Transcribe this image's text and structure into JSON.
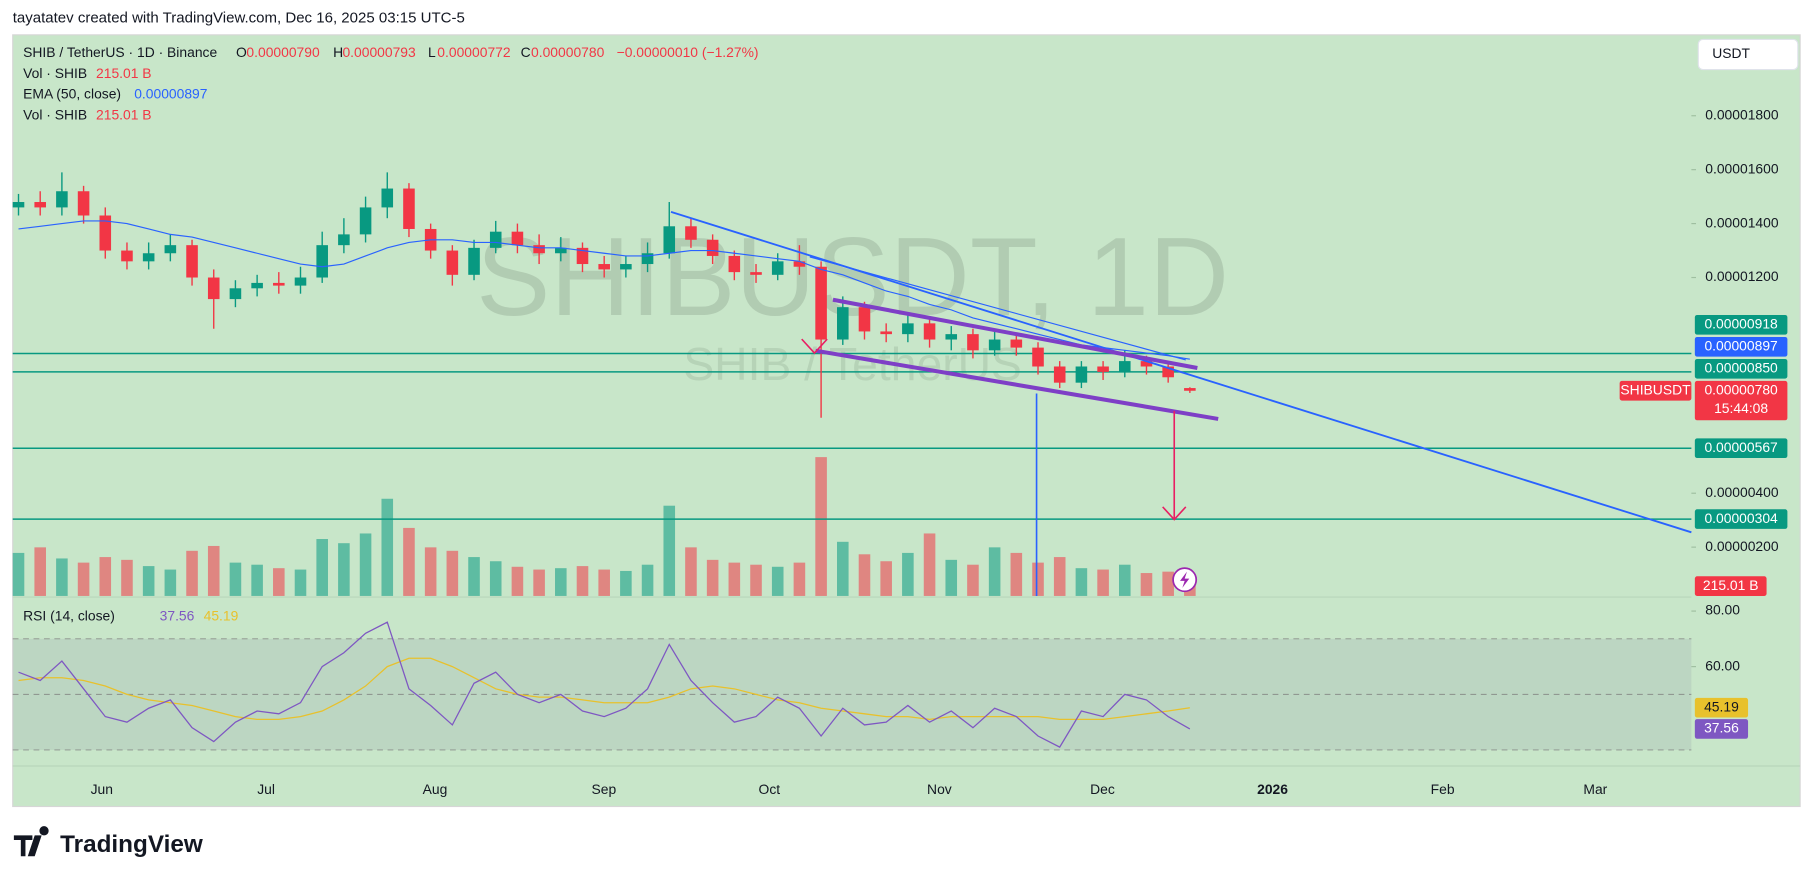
{
  "attribution": "tayatatev created with TradingView.com, Dec 16, 2025 03:15 UTC-5",
  "footer": {
    "logo": "TradingView"
  },
  "legend": {
    "symbol": "SHIB / TetherUS · 1D · Binance",
    "ohlc": [
      {
        "key": "O",
        "value": "0.00000790"
      },
      {
        "key": "H",
        "value": "0.00000793"
      },
      {
        "key": "L",
        "value": "0.00000772"
      },
      {
        "key": "C",
        "value": "0.00000780"
      }
    ],
    "change": "−0.00000010 (−1.27%)"
  },
  "chart_data": {
    "type": "candlestick",
    "watermark": "SHIBUSDT, 1D",
    "watermark_sub": "SHIB / TetherUS",
    "currency": "USDT",
    "time_labels": [
      "Jun",
      "Jul",
      "Aug",
      "Sep",
      "Oct",
      "Nov",
      "Dec",
      "2026",
      "Feb",
      "Mar"
    ],
    "ylim": [
      1.9e-07,
      2.1e-05
    ],
    "yticks": [
      {
        "value": 2e-06,
        "label": "0.00000200"
      },
      {
        "value": 4e-06,
        "label": "0.00000400"
      },
      {
        "value": 1.2e-05,
        "label": "0.00001200"
      },
      {
        "value": 1.4e-05,
        "label": "0.00001400"
      },
      {
        "value": 1.6e-05,
        "label": "0.00001600"
      },
      {
        "value": 1.8e-05,
        "label": "0.00001800"
      }
    ],
    "grid": false,
    "candles": {
      "name": "SHIBUSDT",
      "up_color": "#089981",
      "down_color": "#f23645",
      "open": [
        1.46e-05,
        1.48e-05,
        1.46e-05,
        1.52e-05,
        1.43e-05,
        1.3e-05,
        1.26e-05,
        1.29e-05,
        1.32e-05,
        1.2e-05,
        1.12e-05,
        1.16e-05,
        1.18e-05,
        1.17e-05,
        1.2e-05,
        1.32e-05,
        1.36e-05,
        1.46e-05,
        1.53e-05,
        1.38e-05,
        1.3e-05,
        1.21e-05,
        1.31e-05,
        1.37e-05,
        1.32e-05,
        1.29e-05,
        1.31e-05,
        1.25e-05,
        1.23e-05,
        1.25e-05,
        1.29e-05,
        1.39e-05,
        1.34e-05,
        1.28e-05,
        1.22e-05,
        1.21e-05,
        1.26e-05,
        1.24e-05,
        9.7e-06,
        1.09e-05,
        1e-05,
        9.9e-06,
        1.03e-05,
        9.7e-06,
        9.9e-06,
        9.3e-06,
        9.7e-06,
        9.4e-06,
        8.7e-06,
        8.1e-06,
        8.7e-06,
        8.5e-06,
        8.9e-06,
        8.7e-06,
        7.9e-06
      ],
      "high": [
        1.51e-05,
        1.52e-05,
        1.59e-05,
        1.54e-05,
        1.46e-05,
        1.33e-05,
        1.33e-05,
        1.36e-05,
        1.34e-05,
        1.23e-05,
        1.19e-05,
        1.21e-05,
        1.22e-05,
        1.24e-05,
        1.37e-05,
        1.42e-05,
        1.5e-05,
        1.59e-05,
        1.55e-05,
        1.4e-05,
        1.32e-05,
        1.34e-05,
        1.41e-05,
        1.4e-05,
        1.36e-05,
        1.35e-05,
        1.33e-05,
        1.28e-05,
        1.28e-05,
        1.33e-05,
        1.48e-05,
        1.42e-05,
        1.36e-05,
        1.3e-05,
        1.25e-05,
        1.29e-05,
        1.32e-05,
        1.26e-05,
        1.13e-05,
        1.11e-05,
        1.03e-05,
        1.06e-05,
        1.05e-05,
        1.02e-05,
        1.01e-05,
        1e-05,
        9.9e-06,
        9.6e-06,
        8.9e-06,
        8.9e-06,
        8.9e-06,
        9.3e-06,
        9.1e-06,
        8.9e-06,
        7.93e-06
      ],
      "low": [
        1.43e-05,
        1.43e-05,
        1.43e-05,
        1.4e-05,
        1.27e-05,
        1.23e-05,
        1.23e-05,
        1.26e-05,
        1.17e-05,
        1.01e-05,
        1.09e-05,
        1.13e-05,
        1.14e-05,
        1.14e-05,
        1.18e-05,
        1.29e-05,
        1.33e-05,
        1.42e-05,
        1.35e-05,
        1.27e-05,
        1.17e-05,
        1.19e-05,
        1.29e-05,
        1.29e-05,
        1.25e-05,
        1.26e-05,
        1.22e-05,
        1.2e-05,
        1.2e-05,
        1.22e-05,
        1.27e-05,
        1.31e-05,
        1.25e-05,
        1.19e-05,
        1.18e-05,
        1.19e-05,
        1.21e-05,
        6.8e-06,
        9.5e-06,
        9.7e-06,
        9.6e-06,
        9.6e-06,
        9.4e-06,
        9.3e-06,
        9e-06,
        9.1e-06,
        9.1e-06,
        8.4e-06,
        7.9e-06,
        7.9e-06,
        8.2e-06,
        8.3e-06,
        8.4e-06,
        8.1e-06,
        7.72e-06
      ],
      "close": [
        1.48e-05,
        1.46e-05,
        1.52e-05,
        1.43e-05,
        1.3e-05,
        1.26e-05,
        1.29e-05,
        1.32e-05,
        1.2e-05,
        1.12e-05,
        1.16e-05,
        1.18e-05,
        1.17e-05,
        1.2e-05,
        1.32e-05,
        1.36e-05,
        1.46e-05,
        1.53e-05,
        1.38e-05,
        1.3e-05,
        1.21e-05,
        1.31e-05,
        1.37e-05,
        1.32e-05,
        1.29e-05,
        1.31e-05,
        1.25e-05,
        1.23e-05,
        1.25e-05,
        1.29e-05,
        1.39e-05,
        1.34e-05,
        1.28e-05,
        1.22e-05,
        1.21e-05,
        1.26e-05,
        1.24e-05,
        9.7e-06,
        1.09e-05,
        1e-05,
        9.9e-06,
        1.03e-05,
        9.7e-06,
        9.9e-06,
        9.3e-06,
        9.7e-06,
        9.4e-06,
        8.7e-06,
        8.1e-06,
        8.7e-06,
        8.5e-06,
        8.9e-06,
        8.7e-06,
        8.3e-06,
        7.8e-06
      ],
      "last_label": "0.00000780",
      "countdown": "15:44:08"
    },
    "series": [
      {
        "name": "EMA (50, close)",
        "color": "#2962ff",
        "values": [
          1.38e-05,
          1.39e-05,
          1.4e-05,
          1.41e-05,
          1.41e-05,
          1.4e-05,
          1.38e-05,
          1.36e-05,
          1.35e-05,
          1.33e-05,
          1.31e-05,
          1.29e-05,
          1.27e-05,
          1.25e-05,
          1.24e-05,
          1.25e-05,
          1.28e-05,
          1.31e-05,
          1.33e-05,
          1.34e-05,
          1.34e-05,
          1.33e-05,
          1.33e-05,
          1.32e-05,
          1.31e-05,
          1.31e-05,
          1.3e-05,
          1.29e-05,
          1.28e-05,
          1.28e-05,
          1.29e-05,
          1.3e-05,
          1.3e-05,
          1.29e-05,
          1.28e-05,
          1.27e-05,
          1.26e-05,
          1.23e-05,
          1.21e-05,
          1.18e-05,
          1.15e-05,
          1.13e-05,
          1.1e-05,
          1.08e-05,
          1.05e-05,
          1.03e-05,
          1.01e-05,
          9.9e-06,
          9.7e-06,
          9.5e-06,
          9.4e-06,
          9.3e-06,
          9.2e-06,
          9.1e-06,
          8.97e-06
        ],
        "last_label": "0.00000897"
      }
    ],
    "level_color": "#089981",
    "levels": [
      {
        "value": 9.18e-06,
        "label": "0.00000918"
      },
      {
        "value": 8.5e-06,
        "label": "0.00000850"
      },
      {
        "value": 5.67e-06,
        "label": "0.00000567"
      },
      {
        "value": 3.04e-06,
        "label": "0.00000304"
      }
    ],
    "volume": {
      "name": "Vol · SHIB",
      "values": [
        620,
        700,
        540,
        480,
        560,
        520,
        430,
        380,
        650,
        720,
        480,
        450,
        400,
        380,
        820,
        760,
        900,
        1400,
        980,
        700,
        650,
        560,
        500,
        420,
        380,
        400,
        430,
        380,
        360,
        450,
        1300,
        700,
        520,
        480,
        450,
        420,
        480,
        2000,
        780,
        600,
        500,
        620,
        900,
        520,
        450,
        700,
        620,
        480,
        560,
        400,
        380,
        450,
        330,
        350,
        215.01
      ],
      "last_label": "215.01 B"
    },
    "rsi": {
      "name": "RSI (14, close)",
      "ylim": [
        24.2,
        84.2
      ],
      "yticks": [
        {
          "value": 60,
          "label": "60.00"
        },
        {
          "value": 80,
          "label": "80.00"
        }
      ],
      "bands": [
        30,
        50,
        70
      ],
      "series": [
        {
          "color": "#7e57c2",
          "values": [
            58,
            55,
            62,
            52,
            42,
            40,
            45,
            48,
            38,
            33,
            40,
            44,
            43,
            47,
            60,
            65,
            72,
            76,
            52,
            46,
            39,
            54,
            58,
            50,
            47,
            50,
            44,
            42,
            45,
            52,
            68,
            55,
            47,
            40,
            42,
            49,
            45,
            35,
            45,
            39,
            40,
            46,
            40,
            44,
            38,
            45,
            42,
            35,
            31,
            44,
            42,
            50,
            48,
            42,
            37.56
          ]
        },
        {
          "color": "#e8c12c",
          "values": [
            55,
            56,
            56,
            55,
            53,
            50,
            48,
            47,
            46,
            44,
            42,
            41,
            41,
            42,
            44,
            48,
            53,
            60,
            63,
            63,
            60,
            56,
            52,
            50,
            49,
            49,
            48,
            47,
            47,
            47,
            49,
            52,
            53,
            52,
            50,
            48,
            47,
            45,
            44,
            43,
            42,
            42,
            41,
            42,
            42,
            42,
            42,
            42,
            41,
            41,
            41,
            42,
            43,
            44,
            45.19
          ]
        }
      ]
    }
  }
}
